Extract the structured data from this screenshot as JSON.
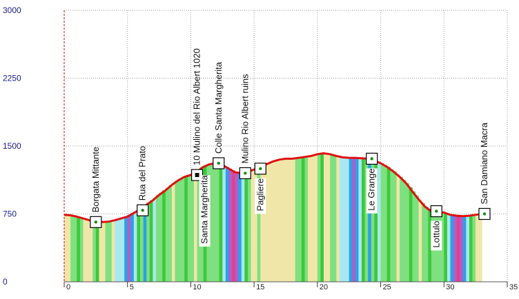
{
  "chart_data": {
    "type": "area",
    "title": "",
    "xlabel": "",
    "ylabel": "",
    "xlim": [
      0,
      35
    ],
    "ylim": [
      0,
      3000
    ],
    "grid": true,
    "x_ticks": [
      "0",
      "5",
      "10",
      "15",
      "20",
      "25",
      "30",
      "35"
    ],
    "y_ticks": [
      "0",
      "750",
      "1500",
      "2250",
      "3000"
    ],
    "series": [
      {
        "x": [
          0,
          0.5,
          1,
          1.5,
          2,
          2.5,
          3,
          3.5,
          4,
          4.5,
          5,
          5.5,
          6,
          6.5,
          7,
          7.5,
          8,
          8.5,
          9,
          9.5,
          10,
          10.5,
          11,
          11.5,
          12,
          12.5,
          13,
          13.5,
          14,
          14.5,
          15,
          15.5,
          16,
          16.5,
          17,
          17.5,
          18,
          18.5,
          19,
          19.5,
          20,
          20.5,
          21,
          21.5,
          22,
          22.5,
          23,
          23.5,
          24,
          24.5,
          25,
          25.5,
          26,
          26.5,
          27,
          27.5,
          28,
          28.5,
          29,
          29.5,
          30,
          30.5,
          31,
          31.5,
          32,
          32.5,
          33
        ],
        "y": [
          740,
          735,
          720,
          700,
          680,
          665,
          660,
          665,
          680,
          700,
          720,
          760,
          800,
          850,
          900,
          960,
          1010,
          1070,
          1120,
          1160,
          1180,
          1220,
          1270,
          1300,
          1310,
          1290,
          1250,
          1210,
          1200,
          1215,
          1240,
          1270,
          1300,
          1330,
          1350,
          1360,
          1360,
          1370,
          1380,
          1390,
          1410,
          1420,
          1410,
          1390,
          1375,
          1370,
          1370,
          1365,
          1360,
          1340,
          1310,
          1270,
          1220,
          1160,
          1090,
          1000,
          910,
          830,
          780,
          770,
          765,
          740,
          730,
          725,
          730,
          740,
          750
        ]
      }
    ],
    "colors": {
      "profile_line": "#e01010",
      "start_marker": "#cc0000",
      "grid": "#999999",
      "y_tick_text": "#1a1a8c",
      "waypoint_box": "#000000",
      "waypoint_dot": "#1a8a1a",
      "strip_palette": [
        "#f0e6a8",
        "#7ee07e",
        "#3cc83c",
        "#a8e8f0",
        "#2ea0e6",
        "#b05ec8",
        "#e0408c",
        "#f0e6a8"
      ]
    },
    "waypoints": [
      {
        "name": "Borgata Mittante",
        "x": 2.5,
        "y": 660,
        "marker": "dot",
        "label_side": "above"
      },
      {
        "name": "Rua del Prato",
        "x": 6.2,
        "y": 790,
        "marker": "dot",
        "label_side": "above"
      },
      {
        "name": "10 Mulino del Rio Albert 1020",
        "x": 10.5,
        "y": 1180,
        "marker": "square",
        "label_side": "above"
      },
      {
        "name": "Santa Margherita",
        "x": 11.1,
        "y": 1285,
        "marker": "none",
        "label_side": "below"
      },
      {
        "name": "Colle Santa Margherita",
        "x": 12.2,
        "y": 1310,
        "marker": "dot",
        "label_side": "above"
      },
      {
        "name": "Mulino Rio Albert ruins",
        "x": 14.3,
        "y": 1200,
        "marker": "dot",
        "label_side": "above"
      },
      {
        "name": "Pagliere",
        "x": 15.5,
        "y": 1250,
        "marker": "dot",
        "label_side": "below"
      },
      {
        "name": "Le Grange",
        "x": 24.3,
        "y": 1360,
        "marker": "dot",
        "label_side": "below"
      },
      {
        "name": "Lottulo",
        "x": 29.4,
        "y": 780,
        "marker": "dot",
        "label_side": "below"
      },
      {
        "name": "San Damiano Macra",
        "x": 33.2,
        "y": 750,
        "marker": "dot",
        "label_side": "above"
      }
    ]
  }
}
